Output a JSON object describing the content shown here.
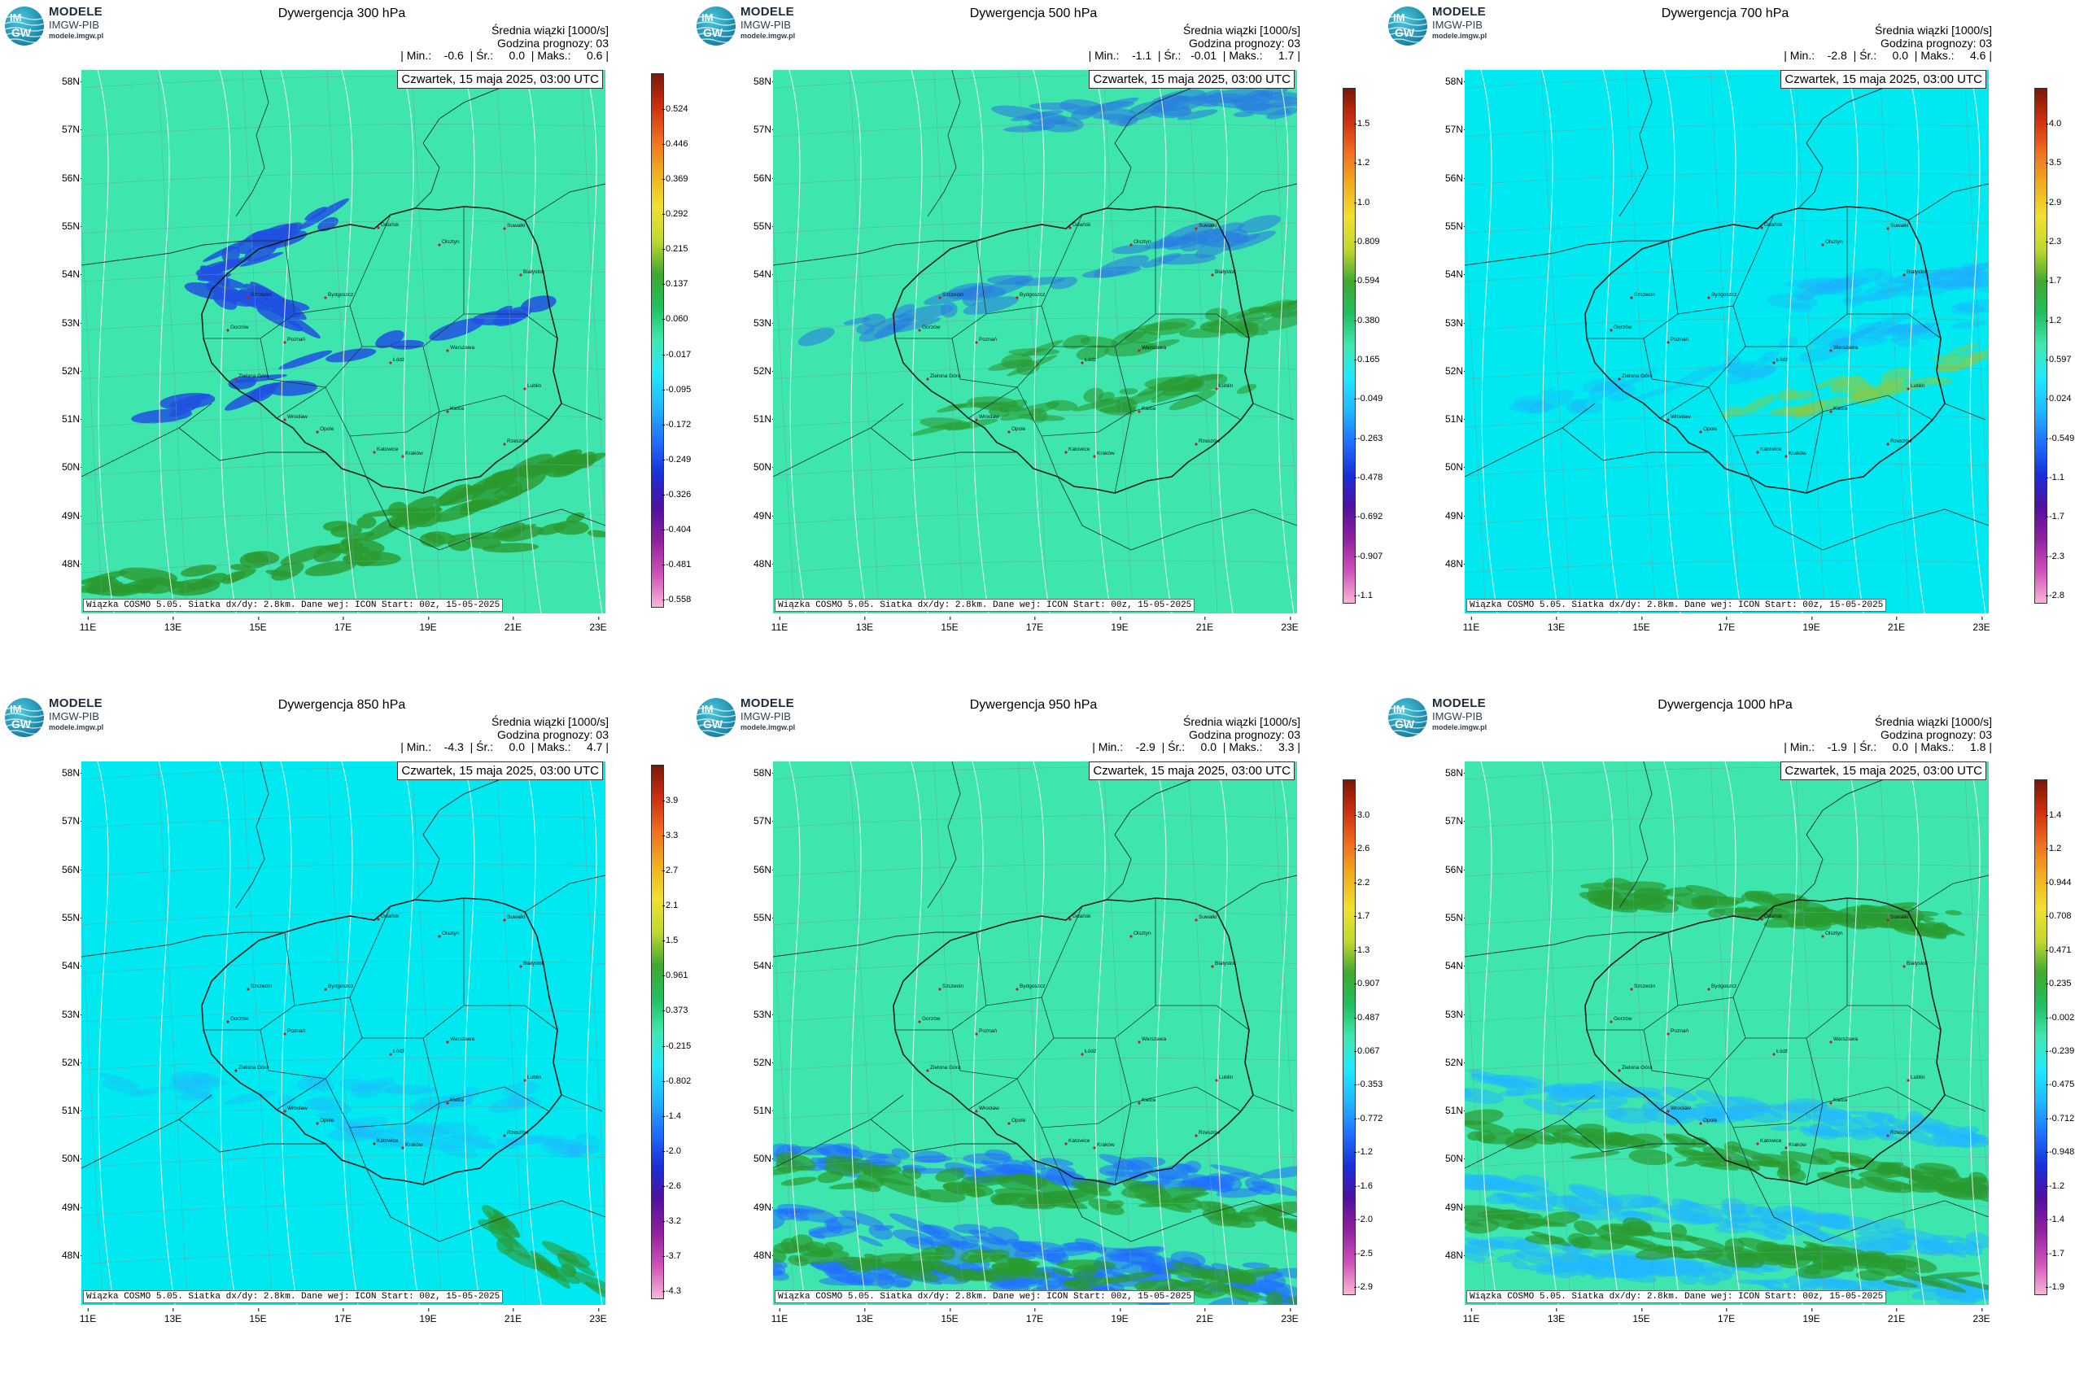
{
  "logo": {
    "line1": "MODELE",
    "line2": "IMGW-PIB",
    "line3": "modele.imgw.pl",
    "circle_top": "IM",
    "circle_bottom": "GW"
  },
  "common": {
    "stat_header": "Średnia wiązki [1000/s]",
    "forecast_hour": "Godzina prognozy: 03",
    "date": "Czwartek, 15 maja 2025, 03:00 UTC",
    "footer": "Wiązka  COSMO  5.05.  Siatka  dx/dy:  2.8km.  Dane  wej:  ICON  Start:  00z,  15-05-2025",
    "lat_labels": [
      "58N",
      "57N",
      "56N",
      "55N",
      "54N",
      "53N",
      "52N",
      "51N",
      "50N",
      "49N",
      "48N"
    ],
    "lon_labels": [
      "11E",
      "13E",
      "15E",
      "17E",
      "19E",
      "21E",
      "23E"
    ]
  },
  "panels": [
    {
      "title": "Dywergencja 300 hPa",
      "stats": "| Min.:    -0.6  | Śr.:     0.0  | Maks.:     0.6 |",
      "colorbar": [
        "0.524",
        "0.446",
        "0.369",
        "0.292",
        "0.215",
        "0.137",
        "0.060",
        "-0.017",
        "-0.095",
        "-0.172",
        "-0.249",
        "-0.326",
        "-0.404",
        "-0.481",
        "-0.558"
      ],
      "background": "#3ee6ad"
    },
    {
      "title": "Dywergencja 500 hPa",
      "stats": "| Min.:    -1.1  | Śr.:   -0.01  | Maks.:     1.7 |",
      "colorbar": [
        "1.5",
        "1.2",
        "1.0",
        "0.809",
        "0.594",
        "0.380",
        "0.165",
        "-0.049",
        "-0.263",
        "-0.478",
        "-0.692",
        "-0.907",
        "-1.1"
      ],
      "background": "#3ee6ad"
    },
    {
      "title": "Dywergencja 700 hPa",
      "stats": "| Min.:    -2.8  | Śr.:     0.0  | Maks.:     4.6 |",
      "colorbar": [
        "4.0",
        "3.5",
        "2.9",
        "2.3",
        "1.7",
        "1.2",
        "0.597",
        "0.024",
        "-0.549",
        "-1.1",
        "-1.7",
        "-2.3",
        "-2.8"
      ],
      "background": "#00e8f0"
    },
    {
      "title": "Dywergencja 850 hPa",
      "stats": "| Min.:    -4.3  | Śr.:     0.0  | Maks.:     4.7 |",
      "colorbar": [
        "3.9",
        "3.3",
        "2.7",
        "2.1",
        "1.5",
        "0.961",
        "0.373",
        "-0.215",
        "-0.802",
        "-1.4",
        "-2.0",
        "-2.6",
        "-3.2",
        "-3.7",
        "-4.3"
      ],
      "background": "#00e8f0"
    },
    {
      "title": "Dywergencja 950 hPa",
      "stats": "| Min.:    -2.9  | Śr.:     0.0  | Maks.:     3.3 |",
      "colorbar": [
        "3.0",
        "2.6",
        "2.2",
        "1.7",
        "1.3",
        "0.907",
        "0.487",
        "0.067",
        "-0.353",
        "-0.772",
        "-1.2",
        "-1.6",
        "-2.0",
        "-2.5",
        "-2.9"
      ],
      "background": "#3ee6ad"
    },
    {
      "title": "Dywergencja 1000 hPa",
      "stats": "| Min.:    -1.9  | Śr.:     0.0  | Maks.:     1.8 |",
      "colorbar": [
        "1.4",
        "1.2",
        "0.944",
        "0.708",
        "0.471",
        "0.235",
        "-0.002",
        "-0.239",
        "-0.475",
        "-0.712",
        "-0.948",
        "-1.2",
        "-1.4",
        "-1.7",
        "-1.9"
      ],
      "background": "#3ee6ad"
    }
  ]
}
